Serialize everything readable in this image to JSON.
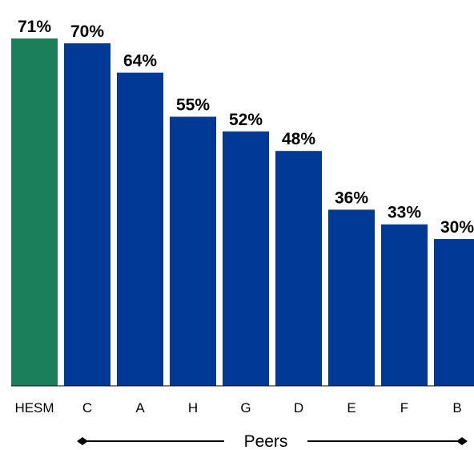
{
  "chart_data": {
    "type": "bar",
    "categories": [
      "HESM",
      "C",
      "A",
      "H",
      "G",
      "D",
      "E",
      "F",
      "B"
    ],
    "values": [
      71,
      70,
      64,
      55,
      52,
      48,
      36,
      33,
      30
    ],
    "value_labels": [
      "71%",
      "70%",
      "64%",
      "55%",
      "52%",
      "48%",
      "36%",
      "33%",
      "30%"
    ],
    "title": "",
    "xlabel": "",
    "ylabel": "",
    "ylim": [
      0,
      100
    ],
    "grid": false,
    "colors": {
      "highlight": "#1a7f5a",
      "peers": "#003a96"
    },
    "highlight_categories": [
      "HESM"
    ],
    "group_bracket": {
      "label": "Peers",
      "from": "C",
      "to": "B"
    }
  }
}
